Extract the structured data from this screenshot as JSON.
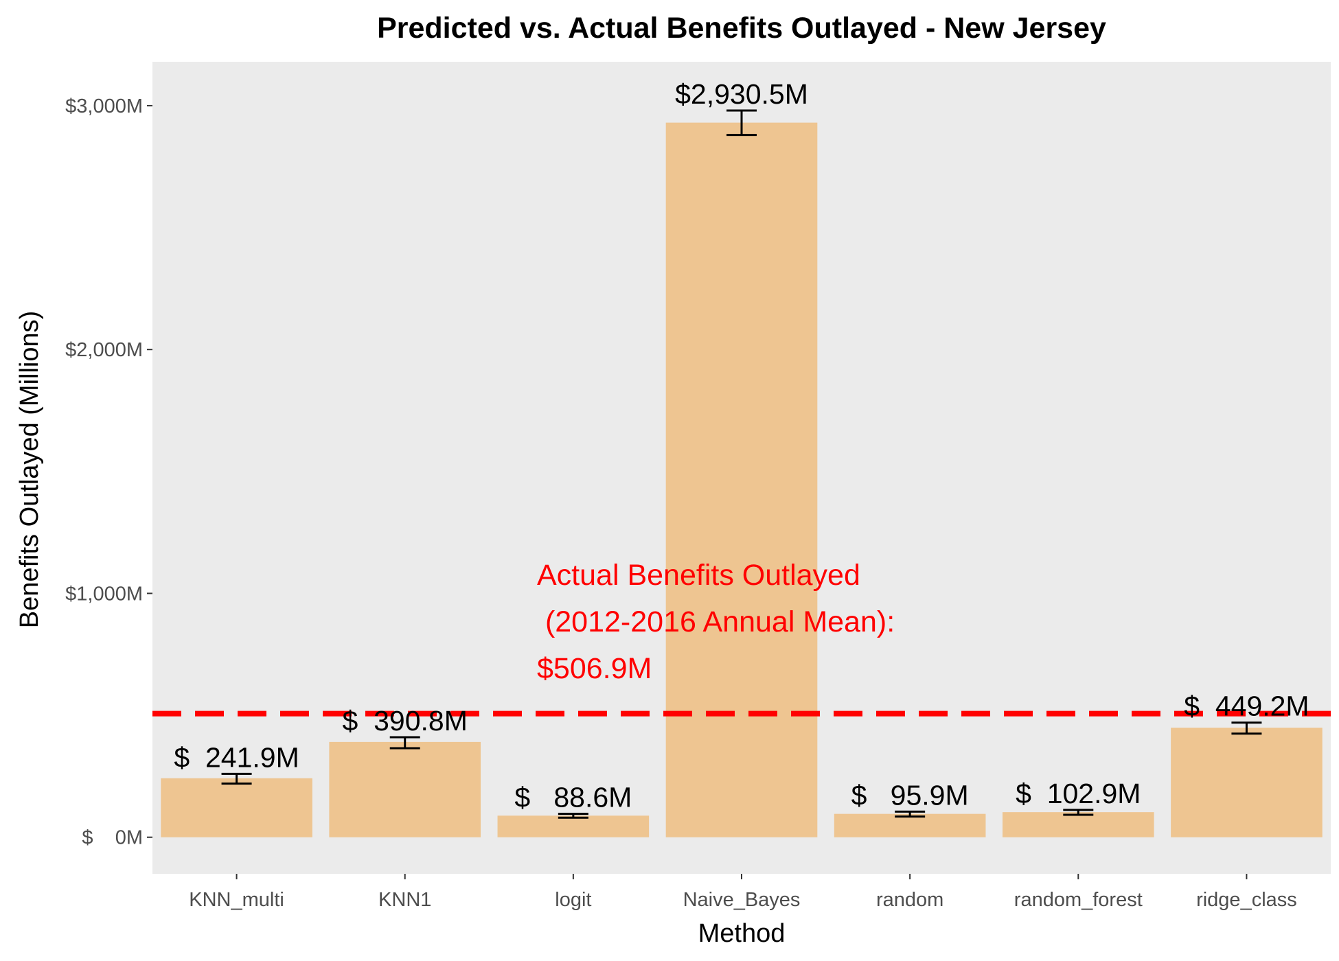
{
  "chart_data": {
    "type": "bar",
    "title": "Predicted vs. Actual Benefits Outlayed - New Jersey",
    "xlabel": "Method",
    "ylabel": "Benefits Outlayed (Millions)",
    "categories": [
      "KNN_multi",
      "KNN1",
      "logit",
      "Naive_Bayes",
      "random",
      "random_forest",
      "ridge_class"
    ],
    "values": [
      241.9,
      390.8,
      88.6,
      2930.5,
      95.9,
      102.9,
      449.2
    ],
    "error_low": [
      220,
      365,
      80,
      2880,
      85,
      92,
      425
    ],
    "error_high": [
      260,
      410,
      96,
      2980,
      105,
      112,
      470
    ],
    "data_labels": [
      "$  241.9M",
      "$  390.8M",
      "$   88.6M",
      "$2,930.5M",
      "$   95.9M",
      "$  102.9M",
      "$  449.2M"
    ],
    "y_ticks": [
      0,
      1000,
      2000,
      3000
    ],
    "y_tick_labels": [
      "$    0M",
      "$1,000M",
      "$2,000M",
      "$3,000M"
    ],
    "ylim": [
      -150,
      3180
    ],
    "grid": false,
    "reference_line": {
      "value": 506.9,
      "color": "#ff0000",
      "style": "dashed",
      "annotation": [
        "Actual Benefits Outlayed",
        " (2012-2016 Annual Mean):",
        "$506.9M"
      ]
    },
    "colors": {
      "bar": "#eec591",
      "panel": "#ebebeb",
      "reference": "#ff0000",
      "error_bar": "#000000"
    }
  }
}
